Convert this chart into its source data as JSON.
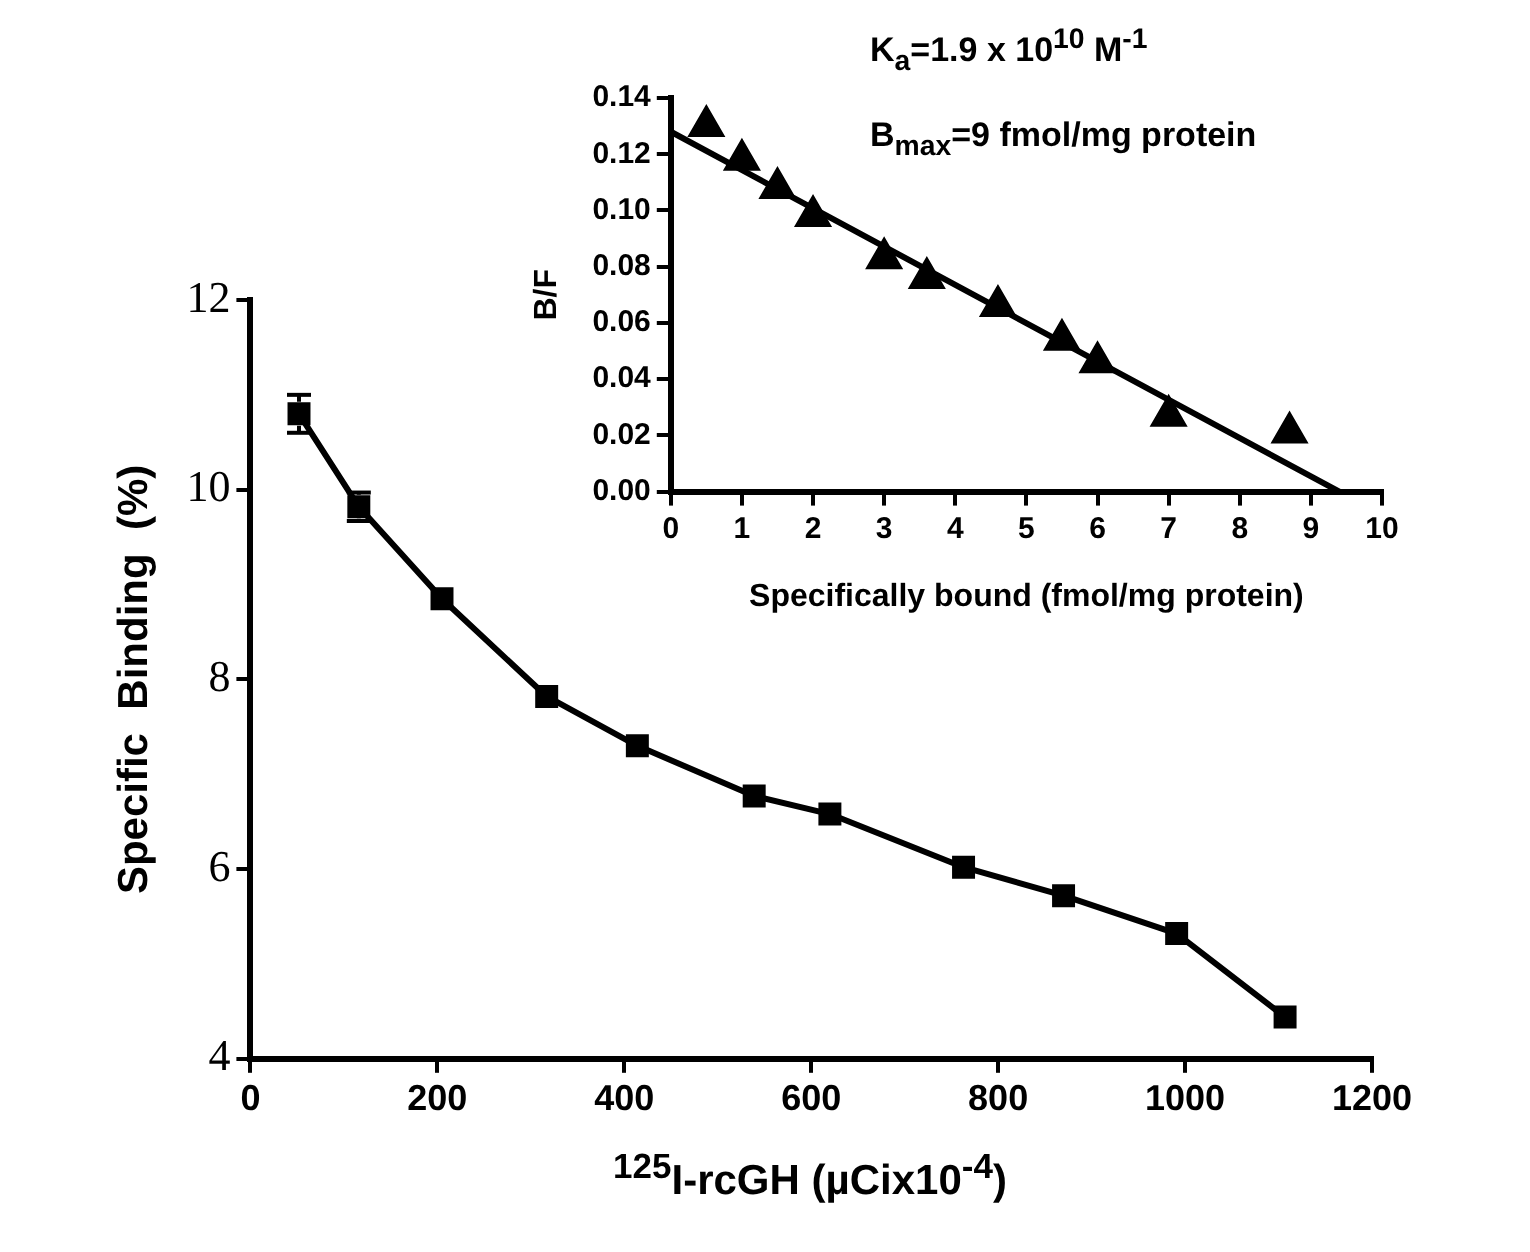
{
  "chart_data": [
    {
      "type": "line",
      "xlabel": "$^{125}$I-rcGH (µCix10$^{-4}$)",
      "ylabel": "Specific  Binding  (%)",
      "x": [
        52,
        116,
        205,
        317,
        414,
        539,
        620,
        763,
        870,
        991,
        1107
      ],
      "series": [
        {
          "color": "#000000",
          "values": [
            10.8,
            9.82,
            8.85,
            7.82,
            7.3,
            6.77,
            6.58,
            6.02,
            5.72,
            5.32,
            4.44
          ],
          "errors": [
            0.2,
            0.15,
            null,
            null,
            null,
            null,
            null,
            null,
            null,
            null,
            null
          ]
        }
      ],
      "xlim": [
        0,
        1200
      ],
      "xticks": [
        0,
        200,
        400,
        600,
        800,
        1000,
        1200
      ],
      "ylim": [
        4,
        12
      ],
      "yticks": [
        4,
        6,
        8,
        10,
        12
      ],
      "marker": "square",
      "line_style": "solid",
      "grid": false,
      "legend": false
    },
    {
      "type": "scatter",
      "xlabel": "Specifically bound (fmol/mg protein)",
      "ylabel": "B/F",
      "annotations": [
        "K$_{a}$=1.9 x 10$^{10}$ M$^{-1}$",
        "B$_{max}$=9  fmol/mg  protein"
      ],
      "series": [
        {
          "type": "scatter",
          "color": "#000000",
          "marker": "triangle",
          "x": [
            0.5,
            1,
            1.5,
            2,
            3,
            3.6,
            4.6,
            5.5,
            6,
            7,
            8.7
          ],
          "values": [
            0.13,
            0.118,
            0.108,
            0.098,
            0.083,
            0.076,
            0.066,
            0.054,
            0.046,
            0.027,
            0.021
          ]
        },
        {
          "type": "line",
          "color": "#000000",
          "marker": "none",
          "x": [
            0,
            9.4
          ],
          "values": [
            0.128,
            0
          ]
        }
      ],
      "xlim": [
        0,
        10
      ],
      "xticks": [
        0,
        1,
        2,
        3,
        4,
        5,
        6,
        7,
        8,
        9,
        10
      ],
      "ylim": [
        0,
        0.14
      ],
      "yticks": [
        {
          "value": 0,
          "label": "0.00"
        },
        {
          "value": 0.02,
          "label": "0.02"
        },
        {
          "value": 0.04,
          "label": "0.04"
        },
        {
          "value": 0.06,
          "label": "0.06"
        },
        {
          "value": 0.08,
          "label": "0.08"
        },
        {
          "value": 0.1,
          "label": "0.10"
        },
        {
          "value": 0.12,
          "label": "0.12"
        },
        {
          "value": 0.14,
          "label": "0.14"
        }
      ],
      "grid": false,
      "legend": false
    }
  ]
}
